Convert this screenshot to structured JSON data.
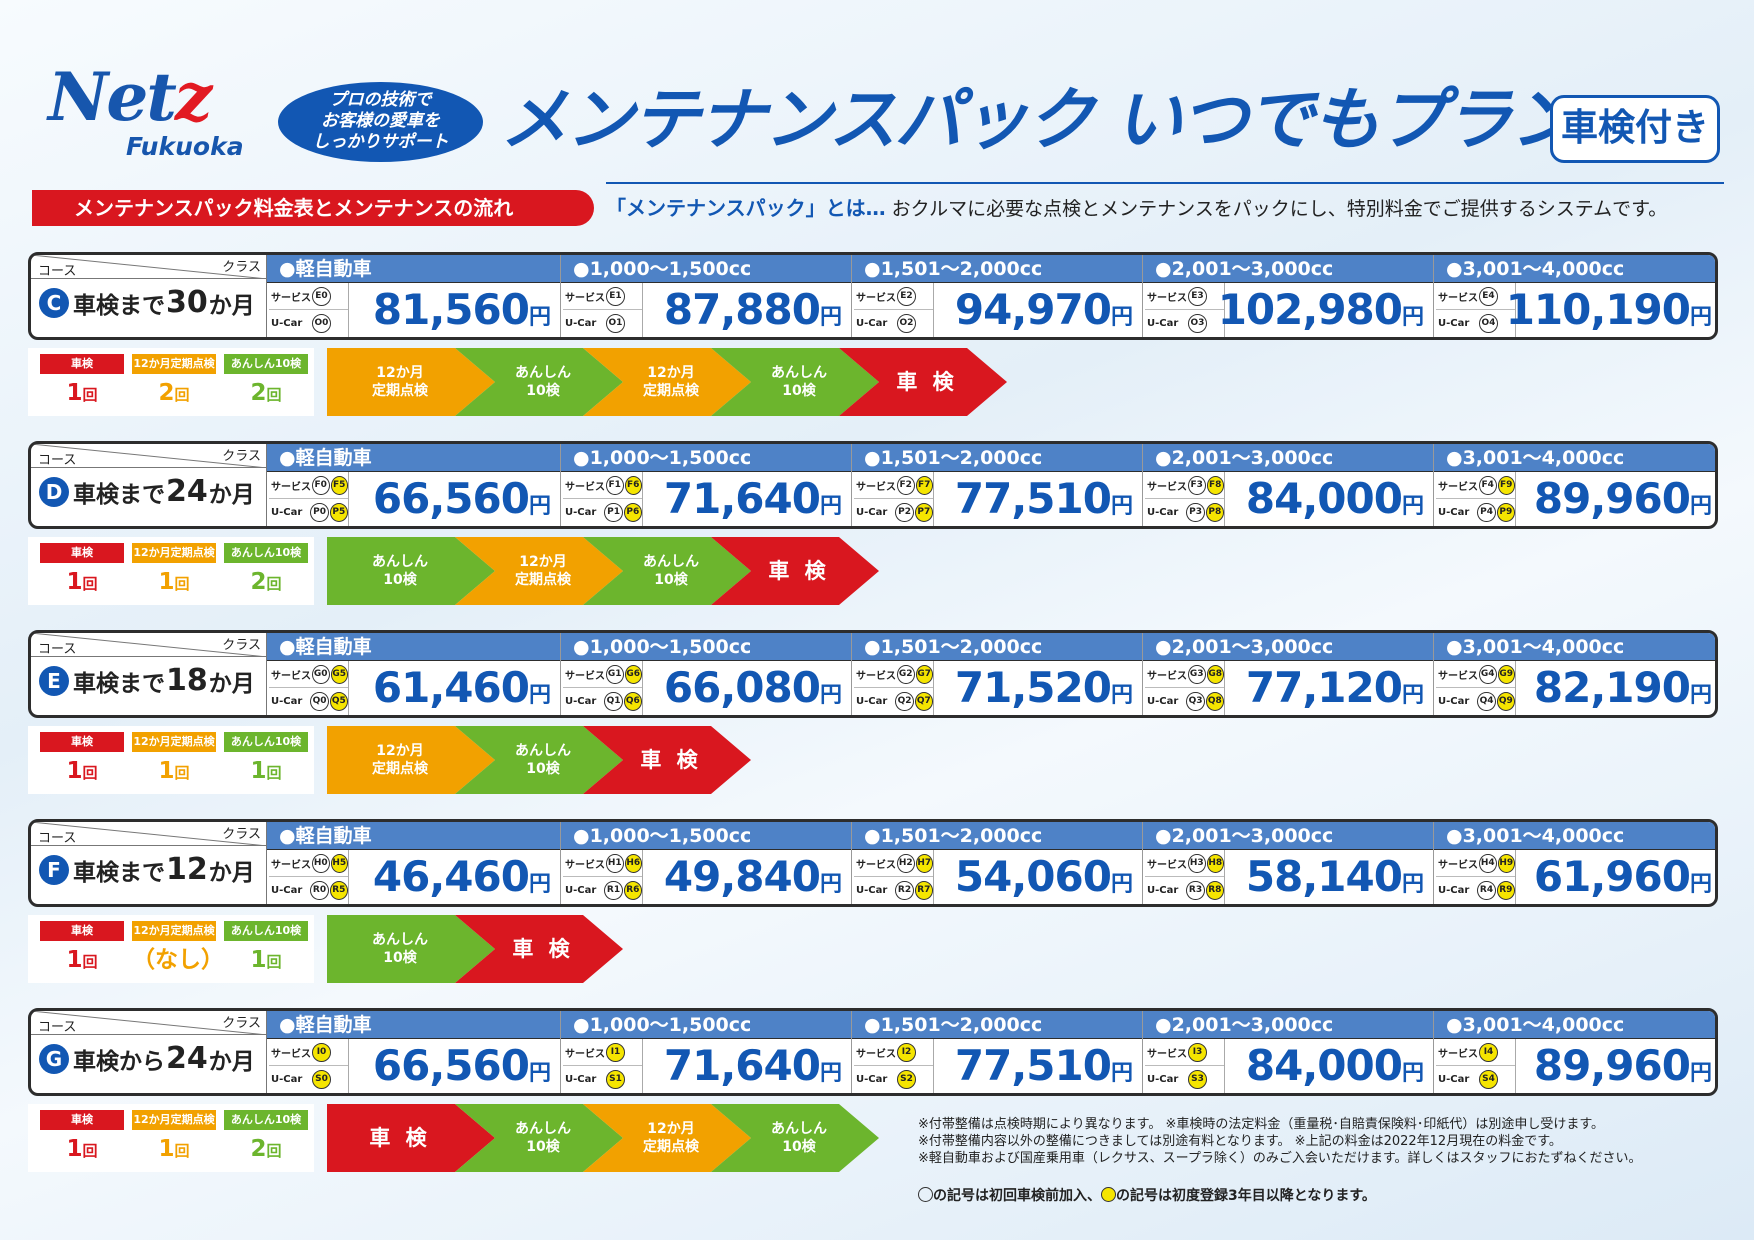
{
  "brand": {
    "name_main": "Net",
    "name_z": "z",
    "sub": "Fukuoka"
  },
  "oval": "プロの技術で\nお客様の愛車を\nしっかりサポート",
  "title": "メンテナンスパック いつでもプラン",
  "badge": "車検付き",
  "section_label": "メンテナンスパック料金表とメンテナンスの流れ",
  "desc_q": "「メンテナンスパック」とは…",
  "desc_text": " おクルマに必要な点検とメンテナンスをパックにし、特別料金でご提供するシステムです。",
  "labels": {
    "course": "コース",
    "class": "クラス",
    "service": "サービス",
    "ucar": "U-Car",
    "yen": "円",
    "shaken": "車検",
    "tenken12": "12か月定期点検",
    "anshin10": "あんしん10検",
    "kai": "回"
  },
  "classes": [
    "●軽自動車",
    "●1,000～1,500cc",
    "●1,501～2,000cc",
    "●2,001～3,000cc",
    "●3,001～4,000cc"
  ],
  "colors": {
    "shaken": "#d9171f",
    "tenken12": "#f2a100",
    "anshin10": "#6cb52d"
  },
  "courses": [
    {
      "letter": "C",
      "pre": "車検まで",
      "num": "30",
      "post": "か月",
      "codes": [
        [
          [
            "E0"
          ],
          [
            "O0"
          ]
        ],
        [
          [
            "E1"
          ],
          [
            "O1"
          ]
        ],
        [
          [
            "E2"
          ],
          [
            "O2"
          ]
        ],
        [
          [
            "E3"
          ],
          [
            "O3"
          ]
        ],
        [
          [
            "E4"
          ],
          [
            "O4"
          ]
        ]
      ],
      "prices": [
        "81,560",
        "87,880",
        "94,970",
        "102,980",
        "110,190"
      ],
      "counts": {
        "shaken": "1",
        "tenken12": "2",
        "anshin10": "2"
      },
      "flow": [
        {
          "type": "tenken12",
          "text": "12か月\n定期点検"
        },
        {
          "type": "anshin10",
          "text": "あんしん\n10検"
        },
        {
          "type": "tenken12",
          "text": "12か月\n定期点検"
        },
        {
          "type": "anshin10",
          "text": "あんしん\n10検"
        },
        {
          "type": "shaken",
          "text": "車 検"
        }
      ]
    },
    {
      "letter": "D",
      "pre": "車検まで",
      "num": "24",
      "post": "か月",
      "codes": [
        [
          [
            "F0",
            "F5"
          ],
          [
            "P0",
            "P5"
          ]
        ],
        [
          [
            "F1",
            "F6"
          ],
          [
            "P1",
            "P6"
          ]
        ],
        [
          [
            "F2",
            "F7"
          ],
          [
            "P2",
            "P7"
          ]
        ],
        [
          [
            "F3",
            "F8"
          ],
          [
            "P3",
            "P8"
          ]
        ],
        [
          [
            "F4",
            "F9"
          ],
          [
            "P4",
            "P9"
          ]
        ]
      ],
      "prices": [
        "66,560",
        "71,640",
        "77,510",
        "84,000",
        "89,960"
      ],
      "counts": {
        "shaken": "1",
        "tenken12": "1",
        "anshin10": "2"
      },
      "flow": [
        {
          "type": "anshin10",
          "text": "あんしん\n10検"
        },
        {
          "type": "tenken12",
          "text": "12か月\n定期点検"
        },
        {
          "type": "anshin10",
          "text": "あんしん\n10検"
        },
        {
          "type": "shaken",
          "text": "車 検"
        }
      ]
    },
    {
      "letter": "E",
      "pre": "車検まで",
      "num": "18",
      "post": "か月",
      "codes": [
        [
          [
            "G0",
            "G5"
          ],
          [
            "Q0",
            "Q5"
          ]
        ],
        [
          [
            "G1",
            "G6"
          ],
          [
            "Q1",
            "Q6"
          ]
        ],
        [
          [
            "G2",
            "G7"
          ],
          [
            "Q2",
            "Q7"
          ]
        ],
        [
          [
            "G3",
            "G8"
          ],
          [
            "Q3",
            "Q8"
          ]
        ],
        [
          [
            "G4",
            "G9"
          ],
          [
            "Q4",
            "Q9"
          ]
        ]
      ],
      "prices": [
        "61,460",
        "66,080",
        "71,520",
        "77,120",
        "82,190"
      ],
      "counts": {
        "shaken": "1",
        "tenken12": "1",
        "anshin10": "1"
      },
      "flow": [
        {
          "type": "tenken12",
          "text": "12か月\n定期点検"
        },
        {
          "type": "anshin10",
          "text": "あんしん\n10検"
        },
        {
          "type": "shaken",
          "text": "車 検"
        }
      ]
    },
    {
      "letter": "F",
      "pre": "車検まで",
      "num": "12",
      "post": "か月",
      "codes": [
        [
          [
            "H0",
            "H5"
          ],
          [
            "R0",
            "R5"
          ]
        ],
        [
          [
            "H1",
            "H6"
          ],
          [
            "R1",
            "R6"
          ]
        ],
        [
          [
            "H2",
            "H7"
          ],
          [
            "R2",
            "R7"
          ]
        ],
        [
          [
            "H3",
            "H8"
          ],
          [
            "R3",
            "R8"
          ]
        ],
        [
          [
            "H4",
            "H9"
          ],
          [
            "R4",
            "R9"
          ]
        ]
      ],
      "prices": [
        "46,460",
        "49,840",
        "54,060",
        "58,140",
        "61,960"
      ],
      "counts": {
        "shaken": "1",
        "tenken12": "（なし）",
        "anshin10": "1"
      },
      "flow": [
        {
          "type": "anshin10",
          "text": "あんしん\n10検"
        },
        {
          "type": "shaken",
          "text": "車 検"
        }
      ]
    },
    {
      "letter": "G",
      "pre": "車検から",
      "num": "24",
      "post": "か月",
      "codes": [
        [
          [
            "I0"
          ],
          [
            "S0"
          ]
        ],
        [
          [
            "I1"
          ],
          [
            "S1"
          ]
        ],
        [
          [
            "I2"
          ],
          [
            "S2"
          ]
        ],
        [
          [
            "I3"
          ],
          [
            "S3"
          ]
        ],
        [
          [
            "I4"
          ],
          [
            "S4"
          ]
        ]
      ],
      "prices": [
        "66,560",
        "71,640",
        "77,510",
        "84,000",
        "89,960"
      ],
      "counts": {
        "shaken": "1",
        "tenken12": "1",
        "anshin10": "2"
      },
      "flow": [
        {
          "type": "shaken",
          "text": "車 検"
        },
        {
          "type": "anshin10",
          "text": "あんしん\n10検"
        },
        {
          "type": "tenken12",
          "text": "12か月\n定期点検"
        },
        {
          "type": "anshin10",
          "text": "あんしん\n10検"
        }
      ]
    }
  ],
  "notes": "※付帯整備は点検時期により異なります。 ※車検時の法定料金（重量税･自賠責保険料･印紙代）は別途申し受けます。\n※付帯整備内容以外の整備につきましては別途有料となります。 ※上記の料金は2022年12月現在の料金です。\n※軽自動車および国産乗用車（レクサス、スープラ除く）のみご入会いただけます。詳しくはスタッフにおたずねください。",
  "legend": {
    "t1": "の記号は初回車検前加入、",
    "t2": "の記号は初度登録3年目以降となります。"
  }
}
